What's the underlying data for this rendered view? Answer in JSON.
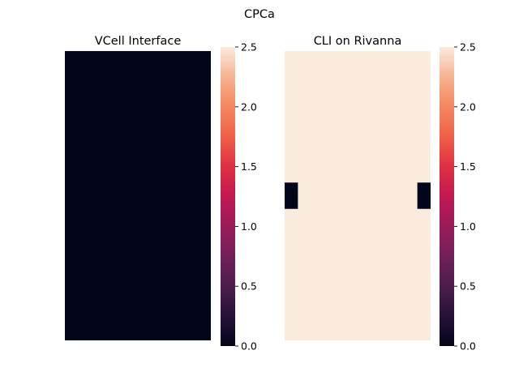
{
  "figure": {
    "suptitle": "CPCa"
  },
  "colors": {
    "low": "#03051a",
    "high": "#faebdd"
  },
  "colormap": "rocket",
  "chart_data": [
    {
      "type": "heatmap",
      "title": "VCell Interface",
      "vmin": 0.0,
      "vmax": 2.5,
      "colorbar_ticks": [
        "0.0",
        "0.5",
        "1.0",
        "1.5",
        "2.0",
        "2.5"
      ],
      "grid_rows": 22,
      "grid_cols": 11,
      "default_value": 0.0,
      "regions": []
    },
    {
      "type": "heatmap",
      "title": "CLI on Rivanna",
      "vmin": 0.0,
      "vmax": 2.5,
      "colorbar_ticks": [
        "0.0",
        "0.5",
        "1.0",
        "1.5",
        "2.0",
        "2.5"
      ],
      "grid_rows": 22,
      "grid_cols": 11,
      "default_value": 2.5,
      "regions": [
        {
          "row_start": 10,
          "row_end": 12,
          "col_start": 0,
          "col_end": 1,
          "value": 0.0
        },
        {
          "row_start": 10,
          "row_end": 12,
          "col_start": 10,
          "col_end": 11,
          "value": 0.0
        }
      ]
    }
  ]
}
